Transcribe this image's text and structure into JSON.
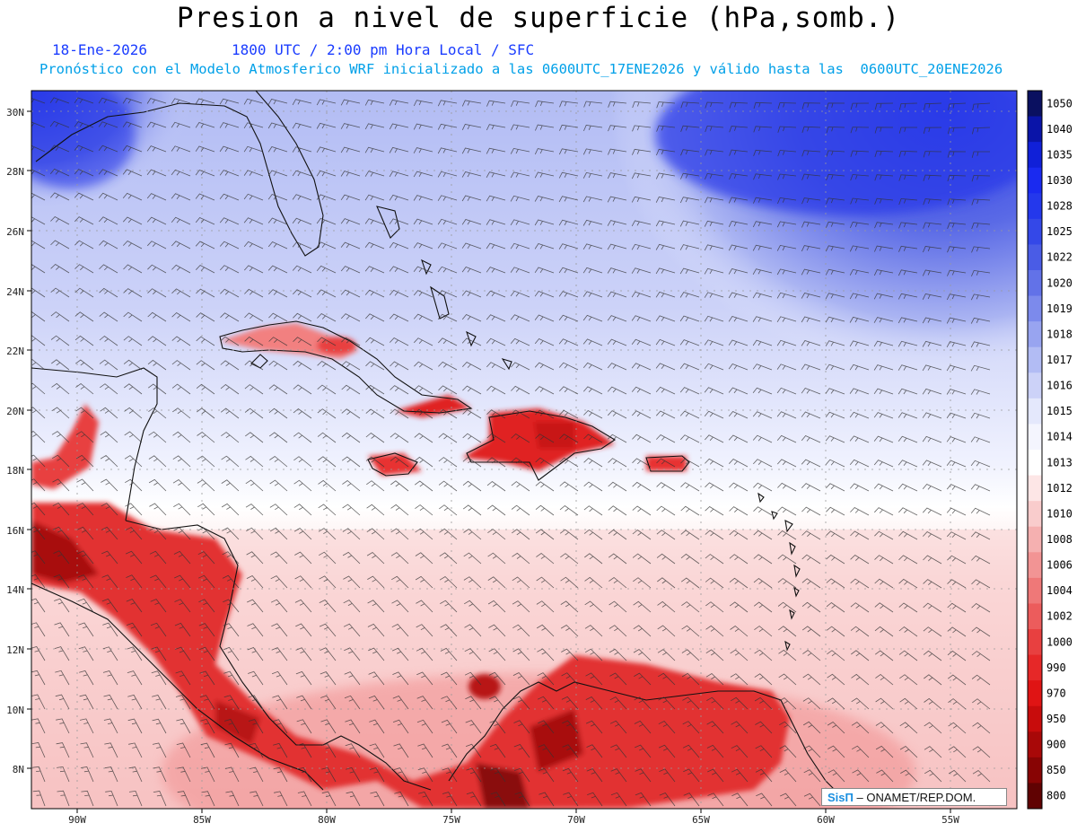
{
  "title": "Presion a nivel de superficie (hPa,somb.)",
  "date": "18-Ene-2026",
  "time": "1800 UTC / 2:00 pm Hora Local / SFC",
  "subtitle": "Pronóstico con el Modelo Atmosferico WRF inicializado a las 0600UTC_17ENE2026 y válido hasta las  0600UTC_20ENE2026",
  "lat_labels": [
    "30N",
    "28N",
    "26N",
    "24N",
    "22N",
    "20N",
    "18N",
    "16N",
    "14N",
    "12N",
    "10N",
    "8N"
  ],
  "lon_labels": [
    "90W",
    "85W",
    "80W",
    "75W",
    "70W",
    "65W",
    "60W",
    "55W"
  ],
  "colorbar": {
    "levels": [
      "1050",
      "1040",
      "1035",
      "1030",
      "1028",
      "1025",
      "1022",
      "1020",
      "1019",
      "1018",
      "1017",
      "1016",
      "1015",
      "1014",
      "1013",
      "1012",
      "1010",
      "1008",
      "1006",
      "1004",
      "1002",
      "1000",
      "990",
      "970",
      "950",
      "900",
      "850",
      "800"
    ],
    "colors": [
      "#0a1060",
      "#0a14a8",
      "#1020d8",
      "#1a2af0",
      "#2438ec",
      "#3448e8",
      "#4a5ce6",
      "#6272e8",
      "#7c8aec",
      "#98a4f0",
      "#b2bcf4",
      "#ccd2f8",
      "#e4e8fc",
      "#f4f5fe",
      "#ffffff",
      "#fde6e6",
      "#f9cccc",
      "#f5b0b0",
      "#f29494",
      "#ef7878",
      "#ec5c5c",
      "#e84040",
      "#e62828",
      "#e01414",
      "#c80c0c",
      "#a80808",
      "#880404",
      "#600202"
    ]
  },
  "credit": {
    "logo": "SisΠ",
    "text": "– ONAMET/REP.DOM."
  }
}
